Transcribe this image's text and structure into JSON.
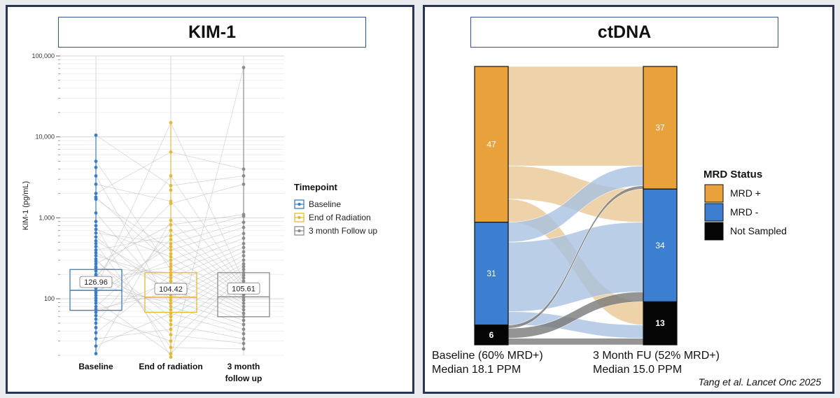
{
  "kim1_panel": {
    "title": "KIM-1",
    "chart_data": {
      "type": "box",
      "ylabel": "KIM-1 (pg/mL)",
      "y_scale": "log",
      "ylim": [
        20,
        100000
      ],
      "y_ticks": [
        100,
        1000,
        10000,
        100000
      ],
      "y_tick_labels": [
        "100",
        "1,000",
        "10,000",
        "100,000"
      ],
      "categories": [
        "Baseline",
        "End of radiation",
        "3 month\nfollow up"
      ],
      "legend": {
        "title": "Timepoint",
        "entries": [
          "Baseline",
          "End of Radiation",
          "3 month Follow up"
        ],
        "position": "right"
      },
      "colors": [
        "#3b7dc4",
        "#e3b93a",
        "#8c8c8c"
      ],
      "series": [
        {
          "name": "Baseline",
          "median": 126.96,
          "median_label": "126.96",
          "q1": 72,
          "q3": 230,
          "points": [
            10500,
            5000,
            4200,
            3300,
            2600,
            2000,
            1800,
            1700,
            1150,
            900,
            800,
            720,
            650,
            580,
            520,
            480,
            440,
            400,
            370,
            340,
            310,
            290,
            270,
            250,
            240,
            220,
            200,
            190,
            180,
            170,
            160,
            150,
            140,
            135,
            125,
            118,
            110,
            102,
            95,
            88,
            80,
            74,
            68,
            62,
            56,
            50,
            44,
            38,
            32,
            26,
            21
          ]
        },
        {
          "name": "End of Radiation",
          "median": 104.42,
          "median_label": "104.42",
          "q1": 68,
          "q3": 210,
          "points": [
            15000,
            6500,
            3300,
            2500,
            2200,
            1600,
            1500,
            930,
            820,
            700,
            600,
            540,
            480,
            440,
            400,
            360,
            330,
            300,
            270,
            250,
            230,
            210,
            195,
            180,
            165,
            150,
            140,
            130,
            120,
            112,
            104,
            96,
            88,
            80,
            73,
            66,
            60,
            54,
            48,
            42,
            36,
            30,
            25,
            21,
            19
          ]
        },
        {
          "name": "3 month Follow up",
          "median": 105.61,
          "median_label": "105.61",
          "q1": 60,
          "q3": 210,
          "points": [
            72000,
            4000,
            3300,
            2600,
            1100,
            1050,
            880,
            760,
            640,
            560,
            480,
            430,
            380,
            340,
            300,
            270,
            250,
            230,
            210,
            195,
            180,
            165,
            150,
            140,
            130,
            120,
            112,
            104,
            96,
            88,
            80,
            73,
            66,
            60,
            54,
            48,
            42,
            37,
            32,
            28,
            24
          ]
        }
      ]
    }
  },
  "ctdna_panel": {
    "title": "ctDNA",
    "chart_data": {
      "type": "alluvial",
      "stages": [
        {
          "caption": [
            "Baseline (60% MRD+)",
            "Median 18.1 PPM"
          ],
          "segments": [
            {
              "status": "MRD +",
              "count": 47
            },
            {
              "status": "MRD -",
              "count": 31
            },
            {
              "status": "Not Sampled",
              "count": 6
            }
          ]
        },
        {
          "caption": [
            "3 Month FU (52% MRD+)",
            "Median 15.0 PPM"
          ],
          "segments": [
            {
              "status": "MRD +",
              "count": 37
            },
            {
              "status": "MRD -",
              "count": 34
            },
            {
              "status": "Not Sampled",
              "count": 13
            }
          ]
        }
      ],
      "flows": [
        {
          "from": "MRD +",
          "to": "MRD +",
          "count": 30
        },
        {
          "from": "MRD +",
          "to": "MRD -",
          "count": 10
        },
        {
          "from": "MRD +",
          "to": "Not Sampled",
          "count": 7
        },
        {
          "from": "MRD -",
          "to": "MRD +",
          "count": 6
        },
        {
          "from": "MRD -",
          "to": "MRD -",
          "count": 21
        },
        {
          "from": "MRD -",
          "to": "Not Sampled",
          "count": 4
        },
        {
          "from": "Not Sampled",
          "to": "MRD +",
          "count": 1
        },
        {
          "from": "Not Sampled",
          "to": "MRD -",
          "count": 3
        },
        {
          "from": "Not Sampled",
          "to": "Not Sampled",
          "count": 2
        }
      ],
      "legend": {
        "title": "MRD Status",
        "entries": [
          "MRD +",
          "MRD -",
          "Not Sampled"
        ],
        "position": "right"
      },
      "colors": {
        "MRD +": "#e9a23b",
        "MRD -": "#3c7fd0",
        "Not Sampled": "#050505"
      },
      "flow_colors": {
        "MRD +": "#e9c896",
        "MRD -": "#a9c3e2",
        "Not Sampled": "#7a7a7a"
      }
    },
    "citation": "Tang et al. Lancet Onc 2025"
  }
}
